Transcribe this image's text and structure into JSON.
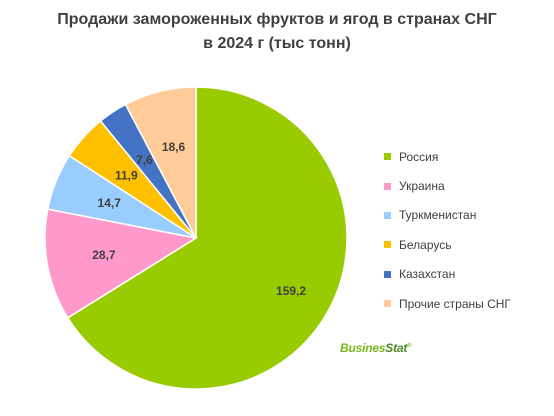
{
  "chart_data": {
    "type": "pie",
    "title_line1": "Продажи замороженных фруктов и ягод в странах СНГ",
    "title_line2": "в 2024 г (тыс тонн)",
    "categories": [
      "Россия",
      "Украина",
      "Туркменистан",
      "Беларусь",
      "Казахстан",
      "Прочие страны СНГ"
    ],
    "values": [
      159.2,
      28.7,
      14.7,
      11.9,
      7.6,
      18.6
    ],
    "labels": [
      "159,2",
      "28,7",
      "14,7",
      "11,9",
      "7,6",
      "18,6"
    ],
    "colors": [
      "#99cc00",
      "#ff99cc",
      "#99ccff",
      "#ffc000",
      "#4472c4",
      "#ffcc99"
    ],
    "start_angle_deg": 0,
    "direction": "clockwise",
    "legend_position": "right"
  },
  "logo": {
    "part1": "Busines",
    "part2": "Stat",
    "mark": "®"
  }
}
